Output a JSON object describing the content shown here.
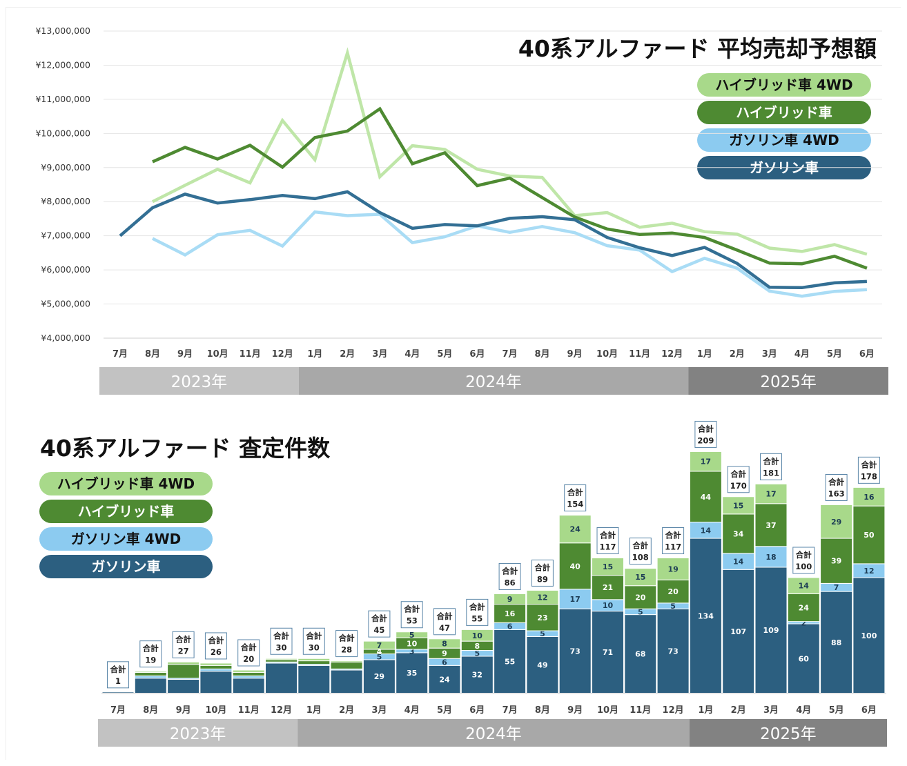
{
  "colors": {
    "hybrid_4wd": "#a8d98a",
    "hybrid": "#4e8a32",
    "gasoline_4wd": "#8ccbf0",
    "gasoline": "#2c5f80",
    "line_hybrid_4wd": "#bfe6a8",
    "line_hybrid": "#4e8a32",
    "line_gasoline_4wd": "#a9dcf5",
    "line_gasoline": "#336f94",
    "year_2023": "#c2c2c2",
    "year_2024": "#a8a8a8",
    "year_2025": "#828282"
  },
  "legend_labels": [
    "ハイブリッド車 4WD",
    "ハイブリッド車",
    "ガソリン車 4WD",
    "ガソリン車"
  ],
  "years": [
    {
      "label": "2023年",
      "start": 0,
      "end": 5
    },
    {
      "label": "2024年",
      "start": 6,
      "end": 17
    },
    {
      "label": "2025年",
      "start": 18,
      "end": 23
    }
  ],
  "chart_data": [
    {
      "type": "line",
      "title": "40系アルファード 平均売却予想額",
      "categories": [
        "7月",
        "8月",
        "9月",
        "10月",
        "11月",
        "12月",
        "1月",
        "2月",
        "3月",
        "4月",
        "5月",
        "6月",
        "7月",
        "8月",
        "9月",
        "10月",
        "11月",
        "12月",
        "1月",
        "2月",
        "3月",
        "4月",
        "5月",
        "6月"
      ],
      "ylim": [
        4000000,
        13000000
      ],
      "yticks": [
        "¥4,000,000",
        "¥5,000,000",
        "¥6,000,000",
        "¥7,000,000",
        "¥8,000,000",
        "¥9,000,000",
        "¥10,000,000",
        "¥11,000,000",
        "¥12,000,000",
        "¥13,000,000"
      ],
      "grid": true,
      "legend": "top-right",
      "series": [
        {
          "name": "ハイブリッド車 4WD",
          "values": [
            null,
            8000000,
            8480000,
            8950000,
            8550000,
            10380000,
            9230000,
            12360000,
            8730000,
            9640000,
            9530000,
            8950000,
            8750000,
            8710000,
            7590000,
            7680000,
            7250000,
            7370000,
            7120000,
            7050000,
            6640000,
            6540000,
            6740000,
            6460000
          ]
        },
        {
          "name": "ハイブリッド車",
          "values": [
            null,
            9170000,
            9590000,
            9250000,
            9650000,
            9010000,
            9880000,
            10070000,
            10720000,
            9110000,
            9430000,
            8470000,
            8690000,
            8120000,
            7550000,
            7200000,
            7040000,
            7080000,
            6950000,
            6580000,
            6200000,
            6180000,
            6400000,
            6050000
          ]
        },
        {
          "name": "ガソリン車 4WD",
          "values": [
            null,
            6920000,
            6440000,
            7030000,
            7160000,
            6700000,
            7700000,
            7590000,
            7630000,
            6800000,
            6970000,
            7290000,
            7100000,
            7270000,
            7090000,
            6710000,
            6580000,
            5950000,
            6340000,
            6050000,
            5380000,
            5230000,
            5370000,
            5420000
          ]
        },
        {
          "name": "ガソリン車",
          "values": [
            7000000,
            7820000,
            8220000,
            7960000,
            8060000,
            8180000,
            8090000,
            8290000,
            7680000,
            7220000,
            7330000,
            7290000,
            7510000,
            7560000,
            7470000,
            6950000,
            6650000,
            6420000,
            6660000,
            6190000,
            5490000,
            5480000,
            5620000,
            5660000
          ]
        }
      ]
    },
    {
      "type": "bar",
      "stacked": true,
      "title": "40系アルファード 査定件数",
      "categories": [
        "7月",
        "8月",
        "9月",
        "10月",
        "11月",
        "12月",
        "1月",
        "2月",
        "3月",
        "4月",
        "5月",
        "6月",
        "7月",
        "8月",
        "9月",
        "10月",
        "11月",
        "12月",
        "1月",
        "2月",
        "3月",
        "4月",
        "5月",
        "6月"
      ],
      "ylim": [
        0,
        209
      ],
      "legend": "top-left",
      "total_label": "合計",
      "totals": [
        1,
        19,
        27,
        26,
        20,
        30,
        30,
        28,
        45,
        53,
        47,
        55,
        86,
        89,
        154,
        117,
        108,
        117,
        209,
        170,
        181,
        100,
        163,
        178
      ],
      "series": [
        {
          "name": "ガソリン車",
          "values": [
            1,
            13,
            12,
            19,
            13,
            26,
            24,
            20,
            29,
            35,
            24,
            32,
            55,
            49,
            73,
            71,
            68,
            73,
            134,
            107,
            109,
            60,
            88,
            100
          ]
        },
        {
          "name": "ガソリン車 4WD",
          "values": [
            0,
            2,
            1,
            2,
            2,
            1,
            1,
            1,
            5,
            3,
            6,
            5,
            6,
            5,
            17,
            10,
            5,
            5,
            14,
            14,
            18,
            2,
            7,
            12
          ]
        },
        {
          "name": "ハイブリッド車",
          "values": [
            0,
            3,
            12,
            3,
            3,
            2,
            3,
            6,
            4,
            10,
            9,
            8,
            16,
            23,
            40,
            21,
            20,
            20,
            44,
            34,
            37,
            24,
            39,
            50
          ]
        },
        {
          "name": "ハイブリッド車 4WD",
          "values": [
            0,
            1,
            2,
            2,
            2,
            1,
            2,
            1,
            7,
            5,
            8,
            10,
            9,
            12,
            24,
            15,
            15,
            19,
            17,
            15,
            17,
            14,
            29,
            16
          ]
        }
      ],
      "visible_labels": {
        "ガソリン車": [
          null,
          null,
          null,
          null,
          null,
          null,
          null,
          null,
          29,
          35,
          24,
          32,
          55,
          49,
          73,
          71,
          68,
          73,
          134,
          107,
          109,
          60,
          88,
          100
        ],
        "ガソリン車 4WD": [
          null,
          null,
          null,
          null,
          null,
          null,
          null,
          null,
          5,
          3,
          6,
          5,
          6,
          5,
          17,
          10,
          5,
          5,
          14,
          14,
          18,
          2,
          7,
          12
        ],
        "ハイブリッド車": [
          null,
          null,
          null,
          null,
          null,
          null,
          null,
          null,
          4,
          10,
          9,
          8,
          16,
          23,
          40,
          21,
          20,
          20,
          44,
          34,
          37,
          24,
          39,
          50
        ],
        "ハイブリッド車 4WD": [
          null,
          null,
          null,
          null,
          null,
          null,
          null,
          null,
          7,
          5,
          8,
          10,
          9,
          12,
          24,
          15,
          15,
          19,
          17,
          15,
          17,
          14,
          29,
          16
        ]
      }
    }
  ]
}
